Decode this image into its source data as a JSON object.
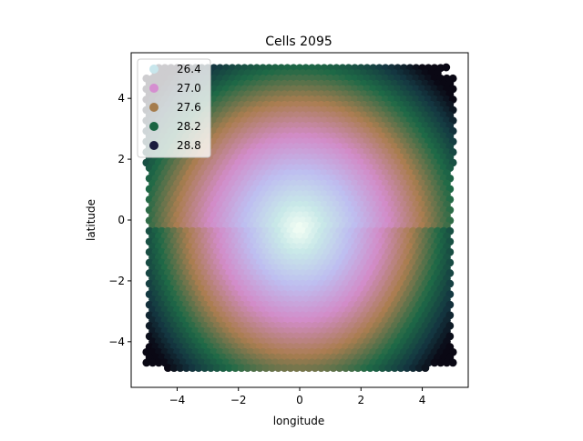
{
  "chart_data": {
    "type": "scatter",
    "title": "Cells 2095",
    "xlabel": "longitude",
    "ylabel": "latitude",
    "xlim": [
      -5.5,
      5.5
    ],
    "ylim": [
      -5.5,
      5.5
    ],
    "xticks": [
      -4,
      -2,
      0,
      2,
      4
    ],
    "yticks": [
      -4,
      -2,
      0,
      2,
      4
    ],
    "x_tick_labels": [
      "−4",
      "−2",
      "0",
      "2",
      "4"
    ],
    "y_tick_labels": [
      "−4",
      "−2",
      "0",
      "2",
      "4"
    ],
    "grid": false,
    "legend_position": "upper-left",
    "color_scale": "cubehelix (reversed): light mint → lavender → pink → brown → green → dark navy",
    "value_range": [
      26.0,
      29.0
    ],
    "legend": [
      {
        "label": "26.4",
        "color": "#c8e6ec"
      },
      {
        "label": "27.0",
        "color": "#d58ed0"
      },
      {
        "label": "27.6",
        "color": "#a57c4c"
      },
      {
        "label": "28.2",
        "color": "#1b6543"
      },
      {
        "label": "28.8",
        "color": "#1b1c3e"
      }
    ],
    "hex_grid": {
      "x_range": [
        -5,
        5
      ],
      "y_range": [
        -5,
        5
      ],
      "dx": 0.2,
      "dy": 0.173
    },
    "field_center": [
      0.0,
      -0.3
    ],
    "extra_points": [
      {
        "x": 4.78,
        "y": 5.02
      }
    ]
  }
}
